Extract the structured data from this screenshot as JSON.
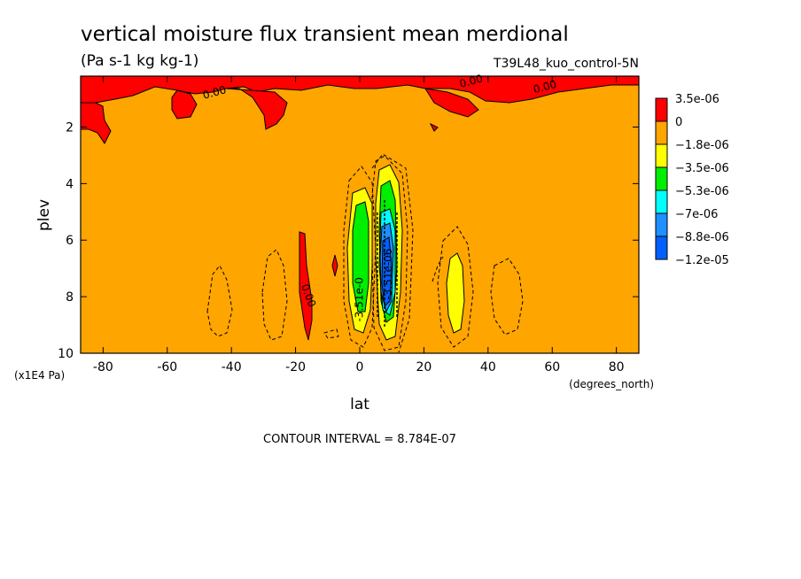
{
  "chart_data": {
    "type": "contour",
    "title": "vertical moisture flux transient mean merdional",
    "subtitle": "(Pa s-1 kg kg-1)",
    "run_label": "T39L48_kuo_control-5N",
    "xlabel": "lat",
    "x_unit": "(degrees_north)",
    "ylabel": "plev",
    "y_unit": "(x1E4 Pa)",
    "xlim": [
      -87,
      87
    ],
    "ylim": [
      10,
      0.2
    ],
    "x_ticks": [
      -80,
      -60,
      -40,
      -20,
      0,
      20,
      40,
      60,
      80
    ],
    "y_ticks": [
      2,
      4,
      6,
      8,
      10
    ],
    "contour_interval_text": "CONTOUR INTERVAL = 8.784E-07",
    "background_color": "#ffa500",
    "legend": {
      "placement": "right",
      "levels": [
        {
          "label": "3.5e-06",
          "color": "#ff0000"
        },
        {
          "label": "0",
          "color": "#ffa500"
        },
        {
          "label": "−1.8e-06",
          "color": "#ffff00"
        },
        {
          "label": "−3.5e-06",
          "color": "#00ee00"
        },
        {
          "label": "−5.3e-06",
          "color": "#00ffff"
        },
        {
          "label": "−7e-06",
          "color": "#1e90ff"
        },
        {
          "label": "−8.8e-06",
          "color": "#0060ff"
        },
        {
          "label": "−1.2e-05",
          "color": null
        }
      ]
    },
    "contour_labels": [
      {
        "text": "0.00",
        "lat": -45,
        "plev": 0.9
      },
      {
        "text": "0.00",
        "lat": 35,
        "plev": 0.5
      },
      {
        "text": "0.00",
        "lat": 58,
        "plev": 0.7
      },
      {
        "text": "0.00",
        "lat": -17,
        "plev": 8.0
      },
      {
        "text": "-3.51e-0",
        "lat": 1,
        "plev": 8.1
      },
      {
        "text": "-3.51e-06",
        "lat": 10,
        "plev": 7.2
      }
    ]
  }
}
